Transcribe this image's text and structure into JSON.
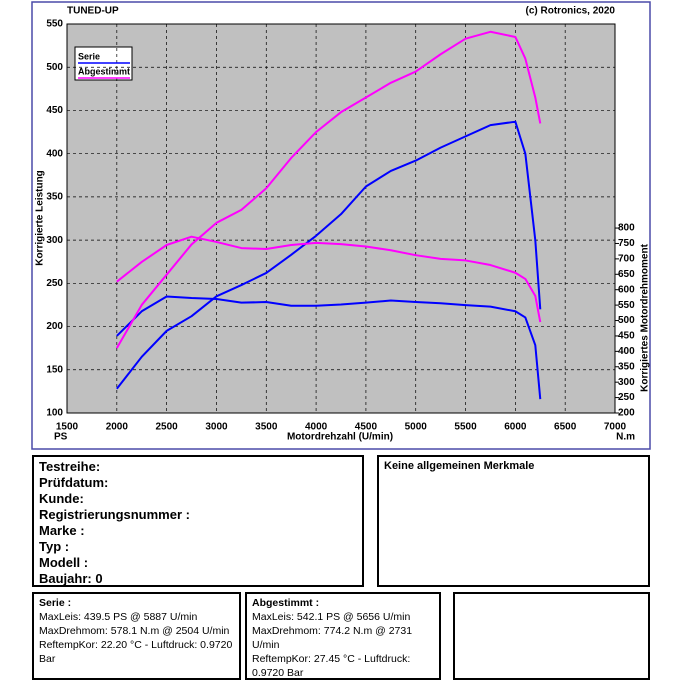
{
  "chart_data": {
    "type": "line",
    "title": "TUNED-UP",
    "subtitle": "(c) Rotronics, 2020",
    "ylabel": "Korrigierte Leistung",
    "y2label": "Korrigiertes Motordrehmoment",
    "xlabel": "Motordrehzahl (U/min)",
    "yunit": "PS",
    "y2unit": "N.m",
    "xlim": [
      1500,
      7000
    ],
    "xticks": [
      1500,
      2000,
      2500,
      3000,
      3500,
      4000,
      4500,
      5000,
      5500,
      6000,
      6500,
      7000
    ],
    "ylim": [
      100,
      550
    ],
    "yticks": [
      100,
      150,
      200,
      250,
      300,
      350,
      400,
      450,
      500,
      550
    ],
    "y2lim": [
      200,
      1462
    ],
    "y2ticks": [
      200,
      250,
      300,
      350,
      400,
      450,
      500,
      550,
      600,
      650,
      700,
      750,
      800
    ],
    "grid": true,
    "legend": "upper left",
    "series": [
      {
        "name": "Serie",
        "color": "#0000ff",
        "x": [
          2000,
          2250,
          2500,
          2750,
          3000,
          3250,
          3500,
          3750,
          4000,
          4250,
          4500,
          4750,
          5000,
          5250,
          5500,
          5750,
          6000,
          6100,
          6200,
          6250
        ],
        "values": [
          128,
          165,
          195,
          212,
          235,
          248,
          262,
          283,
          305,
          330,
          362,
          380,
          392,
          407,
          420,
          433,
          437,
          400,
          300,
          220
        ],
        "torque": [
          450,
          530,
          578,
          573,
          570,
          558,
          560,
          548,
          548,
          552,
          558,
          565,
          560,
          556,
          550,
          545,
          530,
          510,
          420,
          245
        ]
      },
      {
        "name": "Abgestimmt",
        "color": "#ff00ff",
        "x": [
          2000,
          2250,
          2500,
          2750,
          3000,
          3250,
          3500,
          3750,
          4000,
          4250,
          4500,
          4750,
          5000,
          5250,
          5500,
          5750,
          6000,
          6100,
          6200,
          6250
        ],
        "values": [
          175,
          225,
          260,
          295,
          320,
          335,
          360,
          395,
          425,
          448,
          465,
          482,
          495,
          515,
          533,
          541,
          535,
          510,
          465,
          435
        ],
        "torque": [
          626,
          690,
          745,
          772,
          755,
          735,
          732,
          745,
          752,
          748,
          740,
          728,
          712,
          700,
          695,
          680,
          655,
          635,
          580,
          495
        ]
      }
    ]
  },
  "vehicle": [
    "Testreihe:",
    "Prüfdatum:",
    "Kunde:",
    "Registrierungsnummer :",
    "Marke :",
    "Typ :",
    "Modell :",
    "Baujahr: 0"
  ],
  "features": "Keine allgemeinen Merkmale",
  "results": [
    {
      "title": "Serie :",
      "lines": [
        "MaxLeis: 439.5 PS @ 5887 U/min",
        "MaxDrehmom: 578.1 N.m @ 2504 U/min",
        "ReftempKor: 22.20 °C - Luftdruck: 0.9720 Bar"
      ]
    },
    {
      "title": "Abgestimmt :",
      "lines": [
        "MaxLeis: 542.1 PS @ 5656 U/min",
        "MaxDrehmom: 774.2 N.m @ 2731 U/min",
        "ReftempKor: 27.45 °C - Luftdruck: 0.9720 Bar"
      ]
    }
  ]
}
